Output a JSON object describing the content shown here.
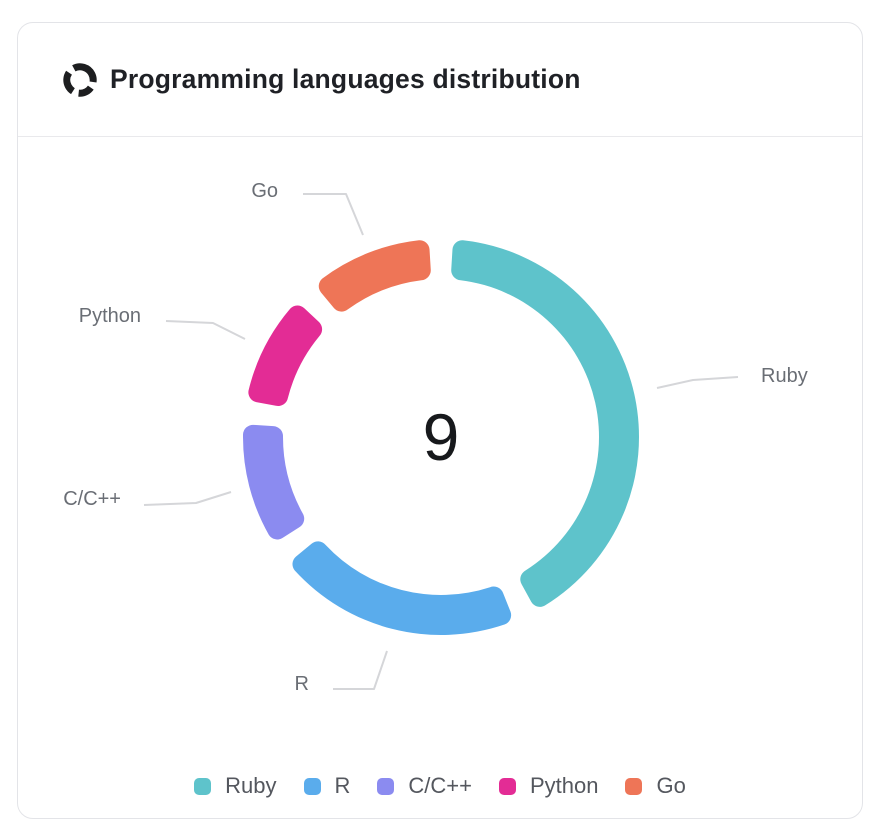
{
  "card": {
    "title": "Programming languages distribution"
  },
  "chart_data": {
    "type": "pie",
    "variant": "donut",
    "title": "Programming languages distribution",
    "center_label": "9",
    "values_unit": "percent (estimated from arc angles)",
    "series": [
      {
        "name": "Ruby",
        "value": 43,
        "color": "#5EC3CB"
      },
      {
        "name": "R",
        "value": 22,
        "color": "#5AACEC"
      },
      {
        "name": "C/C++",
        "value": 12,
        "color": "#8B8BF0"
      },
      {
        "name": "Python",
        "value": 11,
        "color": "#E32C95"
      },
      {
        "name": "Go",
        "value": 12,
        "color": "#EE7557"
      }
    ],
    "legend_position": "bottom",
    "labels_outside": true,
    "grid": false
  },
  "colors": {
    "title_text": "#1f2126",
    "label_text": "#6a6e75",
    "legend_text": "#54575e",
    "connector": "#d5d6d9",
    "card_border": "#e3e4e8"
  }
}
